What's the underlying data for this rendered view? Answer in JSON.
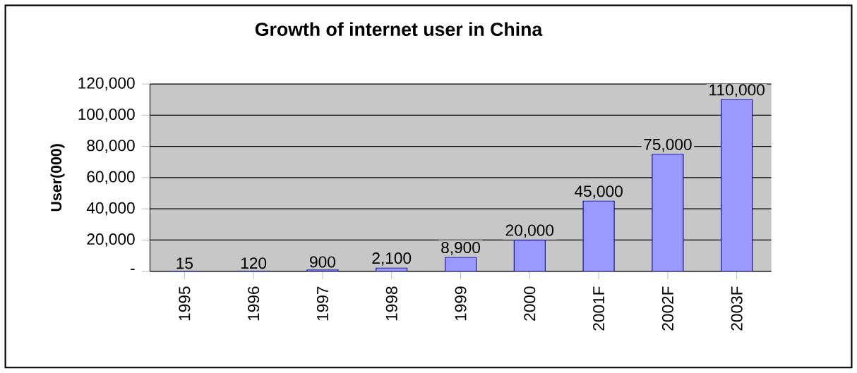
{
  "chart_data": {
    "type": "bar",
    "title": "Growth of internet user in China",
    "ylabel": "User(000)",
    "categories": [
      "1995",
      "1996",
      "1997",
      "1998",
      "1999",
      "2000",
      "2001F",
      "2002F",
      "2003F"
    ],
    "values": [
      15,
      120,
      900,
      2100,
      8900,
      20000,
      45000,
      75000,
      110000
    ],
    "value_labels": [
      "15",
      "120",
      "900",
      "2,100",
      "8,900",
      "20,000",
      "45,000",
      "75,000",
      "110,000"
    ],
    "color": "#9999ff",
    "ylim": [
      0,
      120000
    ],
    "yticks": [
      {
        "value": 0,
        "label": "-"
      },
      {
        "value": 20000,
        "label": "20,000"
      },
      {
        "value": 40000,
        "label": "40,000"
      },
      {
        "value": 60000,
        "label": "60,000"
      },
      {
        "value": 80000,
        "label": "80,000"
      },
      {
        "value": 100000,
        "label": "100,000"
      },
      {
        "value": 120000,
        "label": "120,000"
      }
    ],
    "grid": "y"
  }
}
